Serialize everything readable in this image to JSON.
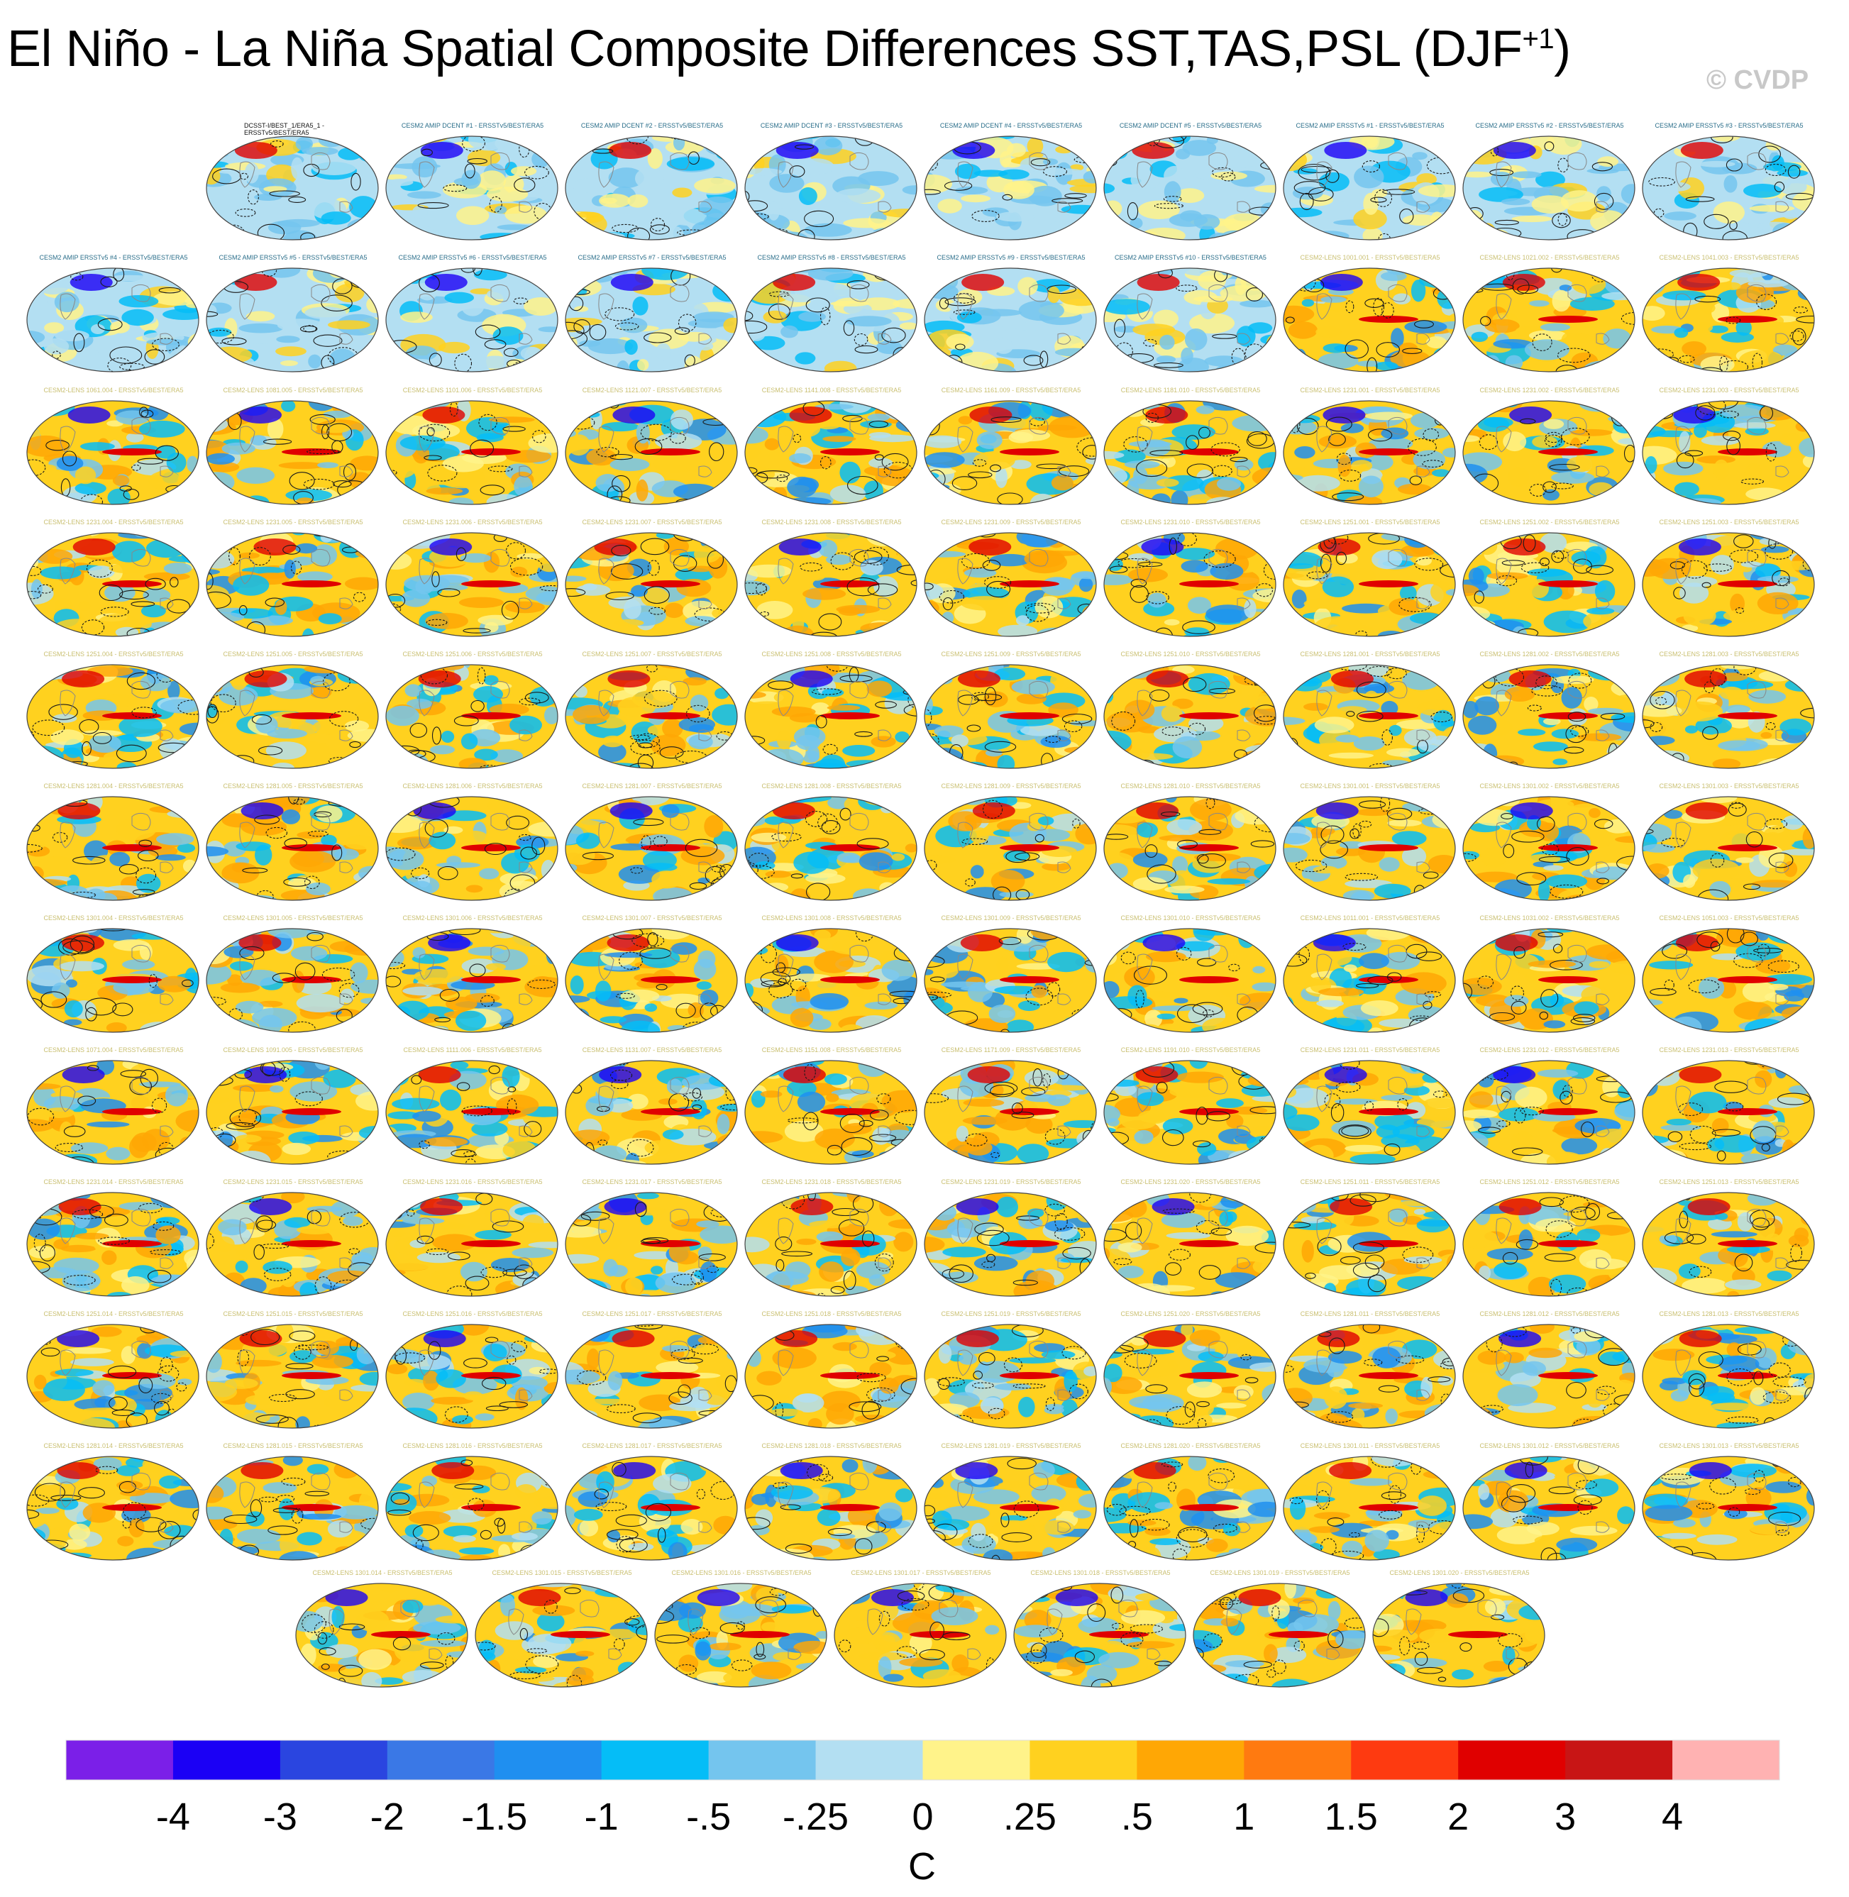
{
  "title": {
    "main": "El Niño - La Niña Spatial Composite Differences SST,TAS,PSL (DJF",
    "superscript": "+1",
    "close": ")"
  },
  "watermark": "© CVDP",
  "panels": [
    {
      "label": "DCSST-I/BEST_1/ERA5_1 - ERSSTv5/BEST/ERA5",
      "kind": "obs"
    },
    {
      "label": "CESM2 AMIP DCENT #1 - ERSSTv5/BEST/ERA5",
      "kind": "amip"
    },
    {
      "label": "CESM2 AMIP DCENT #2 - ERSSTv5/BEST/ERA5",
      "kind": "amip"
    },
    {
      "label": "CESM2 AMIP DCENT #3 - ERSSTv5/BEST/ERA5",
      "kind": "amip"
    },
    {
      "label": "CESM2 AMIP DCENT #4 - ERSSTv5/BEST/ERA5",
      "kind": "amip"
    },
    {
      "label": "CESM2 AMIP DCENT #5 - ERSSTv5/BEST/ERA5",
      "kind": "amip"
    },
    {
      "label": "CESM2 AMIP ERSSTv5 #1 - ERSSTv5/BEST/ERA5",
      "kind": "amip"
    },
    {
      "label": "CESM2 AMIP ERSSTv5 #2 - ERSSTv5/BEST/ERA5",
      "kind": "amip"
    },
    {
      "label": "CESM2 AMIP ERSSTv5 #3 - ERSSTv5/BEST/ERA5",
      "kind": "amip"
    },
    {
      "label": "CESM2 AMIP ERSSTv5 #4 - ERSSTv5/BEST/ERA5",
      "kind": "amip"
    },
    {
      "label": "CESM2 AMIP ERSSTv5 #5 - ERSSTv5/BEST/ERA5",
      "kind": "amip"
    },
    {
      "label": "CESM2 AMIP ERSSTv5 #6 - ERSSTv5/BEST/ERA5",
      "kind": "amip"
    },
    {
      "label": "CESM2 AMIP ERSSTv5 #7 - ERSSTv5/BEST/ERA5",
      "kind": "amip"
    },
    {
      "label": "CESM2 AMIP ERSSTv5 #8 - ERSSTv5/BEST/ERA5",
      "kind": "amip"
    },
    {
      "label": "CESM2 AMIP ERSSTv5 #9 - ERSSTv5/BEST/ERA5",
      "kind": "amip"
    },
    {
      "label": "CESM2 AMIP ERSSTv5 #10 - ERSSTv5/BEST/ERA5",
      "kind": "amip"
    },
    {
      "label": "CESM2-LENS 1001.001 - ERSSTv5/BEST/ERA5",
      "kind": "lens"
    },
    {
      "label": "CESM2-LENS 1021.002 - ERSSTv5/BEST/ERA5",
      "kind": "lens"
    },
    {
      "label": "CESM2-LENS 1041.003 - ERSSTv5/BEST/ERA5",
      "kind": "lens"
    },
    {
      "label": "CESM2-LENS 1061.004 - ERSSTv5/BEST/ERA5",
      "kind": "lens"
    },
    {
      "label": "CESM2-LENS 1081.005 - ERSSTv5/BEST/ERA5",
      "kind": "lens"
    },
    {
      "label": "CESM2-LENS 1101.006 - ERSSTv5/BEST/ERA5",
      "kind": "lens"
    },
    {
      "label": "CESM2-LENS 1121.007 - ERSSTv5/BEST/ERA5",
      "kind": "lens"
    },
    {
      "label": "CESM2-LENS 1141.008 - ERSSTv5/BEST/ERA5",
      "kind": "lens"
    },
    {
      "label": "CESM2-LENS 1161.009 - ERSSTv5/BEST/ERA5",
      "kind": "lens"
    },
    {
      "label": "CESM2-LENS 1181.010 - ERSSTv5/BEST/ERA5",
      "kind": "lens"
    },
    {
      "label": "CESM2-LENS 1231.001 - ERSSTv5/BEST/ERA5",
      "kind": "lens"
    },
    {
      "label": "CESM2-LENS 1231.002 - ERSSTv5/BEST/ERA5",
      "kind": "lens"
    },
    {
      "label": "CESM2-LENS 1231.003 - ERSSTv5/BEST/ERA5",
      "kind": "lens"
    },
    {
      "label": "CESM2-LENS 1231.004 - ERSSTv5/BEST/ERA5",
      "kind": "lens"
    },
    {
      "label": "CESM2-LENS 1231.005 - ERSSTv5/BEST/ERA5",
      "kind": "lens"
    },
    {
      "label": "CESM2-LENS 1231.006 - ERSSTv5/BEST/ERA5",
      "kind": "lens"
    },
    {
      "label": "CESM2-LENS 1231.007 - ERSSTv5/BEST/ERA5",
      "kind": "lens"
    },
    {
      "label": "CESM2-LENS 1231.008 - ERSSTv5/BEST/ERA5",
      "kind": "lens"
    },
    {
      "label": "CESM2-LENS 1231.009 - ERSSTv5/BEST/ERA5",
      "kind": "lens"
    },
    {
      "label": "CESM2-LENS 1231.010 - ERSSTv5/BEST/ERA5",
      "kind": "lens"
    },
    {
      "label": "CESM2-LENS 1251.001 - ERSSTv5/BEST/ERA5",
      "kind": "lens"
    },
    {
      "label": "CESM2-LENS 1251.002 - ERSSTv5/BEST/ERA5",
      "kind": "lens"
    },
    {
      "label": "CESM2-LENS 1251.003 - ERSSTv5/BEST/ERA5",
      "kind": "lens"
    },
    {
      "label": "CESM2-LENS 1251.004 - ERSSTv5/BEST/ERA5",
      "kind": "lens"
    },
    {
      "label": "CESM2-LENS 1251.005 - ERSSTv5/BEST/ERA5",
      "kind": "lens"
    },
    {
      "label": "CESM2-LENS 1251.006 - ERSSTv5/BEST/ERA5",
      "kind": "lens"
    },
    {
      "label": "CESM2-LENS 1251.007 - ERSSTv5/BEST/ERA5",
      "kind": "lens"
    },
    {
      "label": "CESM2-LENS 1251.008 - ERSSTv5/BEST/ERA5",
      "kind": "lens"
    },
    {
      "label": "CESM2-LENS 1251.009 - ERSSTv5/BEST/ERA5",
      "kind": "lens"
    },
    {
      "label": "CESM2-LENS 1251.010 - ERSSTv5/BEST/ERA5",
      "kind": "lens"
    },
    {
      "label": "CESM2-LENS 1281.001 - ERSSTv5/BEST/ERA5",
      "kind": "lens"
    },
    {
      "label": "CESM2-LENS 1281.002 - ERSSTv5/BEST/ERA5",
      "kind": "lens"
    },
    {
      "label": "CESM2-LENS 1281.003 - ERSSTv5/BEST/ERA5",
      "kind": "lens"
    },
    {
      "label": "CESM2-LENS 1281.004 - ERSSTv5/BEST/ERA5",
      "kind": "lens"
    },
    {
      "label": "CESM2-LENS 1281.005 - ERSSTv5/BEST/ERA5",
      "kind": "lens"
    },
    {
      "label": "CESM2-LENS 1281.006 - ERSSTv5/BEST/ERA5",
      "kind": "lens"
    },
    {
      "label": "CESM2-LENS 1281.007 - ERSSTv5/BEST/ERA5",
      "kind": "lens"
    },
    {
      "label": "CESM2-LENS 1281.008 - ERSSTv5/BEST/ERA5",
      "kind": "lens"
    },
    {
      "label": "CESM2-LENS 1281.009 - ERSSTv5/BEST/ERA5",
      "kind": "lens"
    },
    {
      "label": "CESM2-LENS 1281.010 - ERSSTv5/BEST/ERA5",
      "kind": "lens"
    },
    {
      "label": "CESM2-LENS 1301.001 - ERSSTv5/BEST/ERA5",
      "kind": "lens"
    },
    {
      "label": "CESM2-LENS 1301.002 - ERSSTv5/BEST/ERA5",
      "kind": "lens"
    },
    {
      "label": "CESM2-LENS 1301.003 - ERSSTv5/BEST/ERA5",
      "kind": "lens"
    },
    {
      "label": "CESM2-LENS 1301.004 - ERSSTv5/BEST/ERA5",
      "kind": "lens"
    },
    {
      "label": "CESM2-LENS 1301.005 - ERSSTv5/BEST/ERA5",
      "kind": "lens"
    },
    {
      "label": "CESM2-LENS 1301.006 - ERSSTv5/BEST/ERA5",
      "kind": "lens"
    },
    {
      "label": "CESM2-LENS 1301.007 - ERSSTv5/BEST/ERA5",
      "kind": "lens"
    },
    {
      "label": "CESM2-LENS 1301.008 - ERSSTv5/BEST/ERA5",
      "kind": "lens"
    },
    {
      "label": "CESM2-LENS 1301.009 - ERSSTv5/BEST/ERA5",
      "kind": "lens"
    },
    {
      "label": "CESM2-LENS 1301.010 - ERSSTv5/BEST/ERA5",
      "kind": "lens"
    },
    {
      "label": "CESM2-LENS 1011.001 - ERSSTv5/BEST/ERA5",
      "kind": "lens"
    },
    {
      "label": "CESM2-LENS 1031.002 - ERSSTv5/BEST/ERA5",
      "kind": "lens"
    },
    {
      "label": "CESM2-LENS 1051.003 - ERSSTv5/BEST/ERA5",
      "kind": "lens"
    },
    {
      "label": "CESM2-LENS 1071.004 - ERSSTv5/BEST/ERA5",
      "kind": "lens"
    },
    {
      "label": "CESM2-LENS 1091.005 - ERSSTv5/BEST/ERA5",
      "kind": "lens"
    },
    {
      "label": "CESM2-LENS 1111.006 - ERSSTv5/BEST/ERA5",
      "kind": "lens"
    },
    {
      "label": "CESM2-LENS 1131.007 - ERSSTv5/BEST/ERA5",
      "kind": "lens"
    },
    {
      "label": "CESM2-LENS 1151.008 - ERSSTv5/BEST/ERA5",
      "kind": "lens"
    },
    {
      "label": "CESM2-LENS 1171.009 - ERSSTv5/BEST/ERA5",
      "kind": "lens"
    },
    {
      "label": "CESM2-LENS 1191.010 - ERSSTv5/BEST/ERA5",
      "kind": "lens"
    },
    {
      "label": "CESM2-LENS 1231.011 - ERSSTv5/BEST/ERA5",
      "kind": "lens"
    },
    {
      "label": "CESM2-LENS 1231.012 - ERSSTv5/BEST/ERA5",
      "kind": "lens"
    },
    {
      "label": "CESM2-LENS 1231.013 - ERSSTv5/BEST/ERA5",
      "kind": "lens"
    },
    {
      "label": "CESM2-LENS 1231.014 - ERSSTv5/BEST/ERA5",
      "kind": "lens"
    },
    {
      "label": "CESM2-LENS 1231.015 - ERSSTv5/BEST/ERA5",
      "kind": "lens"
    },
    {
      "label": "CESM2-LENS 1231.016 - ERSSTv5/BEST/ERA5",
      "kind": "lens"
    },
    {
      "label": "CESM2-LENS 1231.017 - ERSSTv5/BEST/ERA5",
      "kind": "lens"
    },
    {
      "label": "CESM2-LENS 1231.018 - ERSSTv5/BEST/ERA5",
      "kind": "lens"
    },
    {
      "label": "CESM2-LENS 1231.019 - ERSSTv5/BEST/ERA5",
      "kind": "lens"
    },
    {
      "label": "CESM2-LENS 1231.020 - ERSSTv5/BEST/ERA5",
      "kind": "lens"
    },
    {
      "label": "CESM2-LENS 1251.011 - ERSSTv5/BEST/ERA5",
      "kind": "lens"
    },
    {
      "label": "CESM2-LENS 1251.012 - ERSSTv5/BEST/ERA5",
      "kind": "lens"
    },
    {
      "label": "CESM2-LENS 1251.013 - ERSSTv5/BEST/ERA5",
      "kind": "lens"
    },
    {
      "label": "CESM2-LENS 1251.014 - ERSSTv5/BEST/ERA5",
      "kind": "lens"
    },
    {
      "label": "CESM2-LENS 1251.015 - ERSSTv5/BEST/ERA5",
      "kind": "lens"
    },
    {
      "label": "CESM2-LENS 1251.016 - ERSSTv5/BEST/ERA5",
      "kind": "lens"
    },
    {
      "label": "CESM2-LENS 1251.017 - ERSSTv5/BEST/ERA5",
      "kind": "lens"
    },
    {
      "label": "CESM2-LENS 1251.018 - ERSSTv5/BEST/ERA5",
      "kind": "lens"
    },
    {
      "label": "CESM2-LENS 1251.019 - ERSSTv5/BEST/ERA5",
      "kind": "lens"
    },
    {
      "label": "CESM2-LENS 1251.020 - ERSSTv5/BEST/ERA5",
      "kind": "lens"
    },
    {
      "label": "CESM2-LENS 1281.011 - ERSSTv5/BEST/ERA5",
      "kind": "lens"
    },
    {
      "label": "CESM2-LENS 1281.012 - ERSSTv5/BEST/ERA5",
      "kind": "lens"
    },
    {
      "label": "CESM2-LENS 1281.013 - ERSSTv5/BEST/ERA5",
      "kind": "lens"
    },
    {
      "label": "CESM2-LENS 1281.014 - ERSSTv5/BEST/ERA5",
      "kind": "lens"
    },
    {
      "label": "CESM2-LENS 1281.015 - ERSSTv5/BEST/ERA5",
      "kind": "lens"
    },
    {
      "label": "CESM2-LENS 1281.016 - ERSSTv5/BEST/ERA5",
      "kind": "lens"
    },
    {
      "label": "CESM2-LENS 1281.017 - ERSSTv5/BEST/ERA5",
      "kind": "lens"
    },
    {
      "label": "CESM2-LENS 1281.018 - ERSSTv5/BEST/ERA5",
      "kind": "lens"
    },
    {
      "label": "CESM2-LENS 1281.019 - ERSSTv5/BEST/ERA5",
      "kind": "lens"
    },
    {
      "label": "CESM2-LENS 1281.020 - ERSSTv5/BEST/ERA5",
      "kind": "lens"
    },
    {
      "label": "CESM2-LENS 1301.011 - ERSSTv5/BEST/ERA5",
      "kind": "lens"
    },
    {
      "label": "CESM2-LENS 1301.012 - ERSSTv5/BEST/ERA5",
      "kind": "lens"
    },
    {
      "label": "CESM2-LENS 1301.013 - ERSSTv5/BEST/ERA5",
      "kind": "lens"
    },
    {
      "label": "CESM2-LENS 1301.014 - ERSSTv5/BEST/ERA5",
      "kind": "lens"
    },
    {
      "label": "CESM2-LENS 1301.015 - ERSSTv5/BEST/ERA5",
      "kind": "lens"
    },
    {
      "label": "CESM2-LENS 1301.016 - ERSSTv5/BEST/ERA5",
      "kind": "lens"
    },
    {
      "label": "CESM2-LENS 1301.017 - ERSSTv5/BEST/ERA5",
      "kind": "lens"
    },
    {
      "label": "CESM2-LENS 1301.018 - ERSSTv5/BEST/ERA5",
      "kind": "lens"
    },
    {
      "label": "CESM2-LENS 1301.019 - ERSSTv5/BEST/ERA5",
      "kind": "lens"
    },
    {
      "label": "CESM2-LENS 1301.020 - ERSSTv5/BEST/ERA5",
      "kind": "lens"
    }
  ],
  "chart_data": {
    "type": "heatmap",
    "title": "El Niño - La Niña Spatial Composite Differences SST,TAS,PSL (DJF+1)",
    "colorbar": {
      "unit": "C",
      "tick_labels": [
        "-4",
        "-3",
        "-2",
        "-1.5",
        "-1",
        "-.5",
        "-.25",
        "0",
        ".25",
        ".5",
        "1",
        "1.5",
        "2",
        "3",
        "4"
      ],
      "colors": [
        "#7b1fe8",
        "#1b00f5",
        "#2a45e0",
        "#3a78e6",
        "#1f8ff0",
        "#05bdf7",
        "#74c5ee",
        "#b3dff2",
        "#fff38a",
        "#ffd11f",
        "#ffa705",
        "#ff7a10",
        "#fe3a10",
        "#e00000",
        "#c81515",
        "#ffb2b2"
      ]
    }
  }
}
